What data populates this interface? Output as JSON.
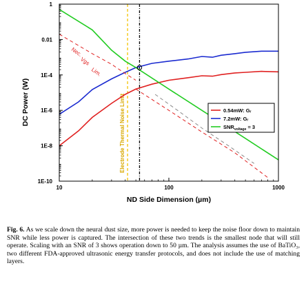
{
  "chart_data": {
    "type": "line",
    "xlabel": "ND Side Dimension (µm)",
    "ylabel": "DC Power (W)",
    "xscale": "log",
    "yscale": "log",
    "xlim": [
      10,
      1000
    ],
    "ylim": [
      1e-10,
      1
    ],
    "x_ticks": [
      {
        "value": 10,
        "label": "10"
      },
      {
        "value": 100,
        "label": "100"
      },
      {
        "value": 1000,
        "label": "1000"
      }
    ],
    "y_ticks": [
      {
        "value": 1,
        "label": "1"
      },
      {
        "value": 0.01,
        "label": "0.01"
      },
      {
        "value": 0.0001,
        "label": "1E-4"
      },
      {
        "value": 1e-06,
        "label": "1E-6"
      },
      {
        "value": 1e-08,
        "label": "1E-8"
      },
      {
        "value": 1e-10,
        "label": "1E-10"
      }
    ],
    "series": [
      {
        "name": "0.54mW: G",
        "color": "#e02020",
        "style": "solid",
        "points": [
          [
            10,
            1e-08
          ],
          [
            15,
            7e-08
          ],
          [
            20,
            4e-07
          ],
          [
            30,
            2.5e-06
          ],
          [
            40,
            8e-06
          ],
          [
            50,
            1.6e-05
          ],
          [
            70,
            3e-05
          ],
          [
            100,
            5e-05
          ],
          [
            150,
            7e-05
          ],
          [
            200,
            9e-05
          ],
          [
            250,
            8.5e-05
          ],
          [
            300,
            0.000105
          ],
          [
            400,
            0.00013
          ],
          [
            500,
            0.00014
          ],
          [
            700,
            0.00016
          ],
          [
            1000,
            0.00015
          ]
        ]
      },
      {
        "name": "7.2mW: G",
        "color": "#1a2ad0",
        "style": "solid",
        "points": [
          [
            10,
            6e-07
          ],
          [
            15,
            3e-06
          ],
          [
            20,
            1.5e-05
          ],
          [
            30,
            6e-05
          ],
          [
            40,
            0.00014
          ],
          [
            50,
            0.00026
          ],
          [
            70,
            0.00045
          ],
          [
            100,
            0.0006
          ],
          [
            150,
            0.0008
          ],
          [
            200,
            0.0011
          ],
          [
            250,
            0.001
          ],
          [
            300,
            0.0013
          ],
          [
            400,
            0.0016
          ],
          [
            500,
            0.0019
          ],
          [
            700,
            0.0022
          ],
          [
            1000,
            0.0022
          ]
        ]
      },
      {
        "name": "SNR = 3",
        "color": "#22cc22",
        "style": "solid",
        "points": [
          [
            10,
            0.5
          ],
          [
            20,
            0.035
          ],
          [
            30,
            0.0025
          ],
          [
            40,
            0.0006
          ],
          [
            50,
            0.00026
          ],
          [
            100,
            1.6e-05
          ],
          [
            200,
            1e-06
          ],
          [
            500,
            2.6e-08
          ],
          [
            1000,
            1.6e-09
          ]
        ]
      },
      {
        "name": "",
        "color": "#e02020",
        "style": "dashed",
        "points": [
          [
            10,
            0.02
          ],
          [
            20,
            0.0016
          ],
          [
            30,
            0.0004
          ],
          [
            40,
            0.00012
          ],
          [
            50,
            5e-05
          ]
        ]
      },
      {
        "name": "",
        "color": "#e02020",
        "style": "dashed",
        "points": [
          [
            50,
            1.6e-05
          ],
          [
            100,
            1e-06
          ],
          [
            200,
            6e-08
          ],
          [
            400,
            4e-09
          ],
          [
            800,
            1.6e-10
          ]
        ]
      },
      {
        "name": "",
        "color": "#8a8a8a",
        "style": "dashed",
        "points": [
          [
            75,
            8e-06
          ],
          [
            120,
            1e-06
          ],
          [
            200,
            1e-07
          ],
          [
            350,
            1e-08
          ],
          [
            600,
            1e-09
          ]
        ]
      }
    ],
    "vertical_lines": [
      {
        "x": 42,
        "color": "#f2c200",
        "style": "dashed",
        "text": "Electrode Thermal Noise Limit",
        "text_color": "#d8a800"
      },
      {
        "x": 54,
        "color": "#000000",
        "style": "dashdot",
        "text": "",
        "text_color": "#000000"
      }
    ],
    "annotations": [
      {
        "text": "Nec.",
        "color": "#e02020",
        "x": 12.8,
        "y": 0.0025
      },
      {
        "text": "Vgs",
        "color": "#e02020",
        "x": 15.5,
        "y": 0.0007
      },
      {
        "text": "Lim.",
        "color": "#e02020",
        "x": 19.5,
        "y": 0.00018
      }
    ],
    "intersection_marker": {
      "x": 54,
      "y": 0.00026
    },
    "legend": {
      "position": "right",
      "entries": [
        {
          "label": "0.54mW: Gᵣ",
          "color": "#e02020"
        },
        {
          "label": "7.2mW: Gᵣ",
          "color": "#1a2ad0"
        },
        {
          "label": "SNR = 3",
          "color": "#22cc22",
          "sub": "voltage"
        }
      ]
    }
  },
  "caption": {
    "label": "Fig. 6.",
    "text": "As we scale down the neural dust size, more power is needed to keep the noise floor down to maintain SNR while less power is captured. The intersection of these two trends is the smallest node that will still operate. Scaling with an SNR of 3 shows operation down to 50 µm. The analysis assumes the use of BaTiO₃, two different FDA-approved ultrasonic energy transfer protocols, and does not include the use of matching layers."
  }
}
